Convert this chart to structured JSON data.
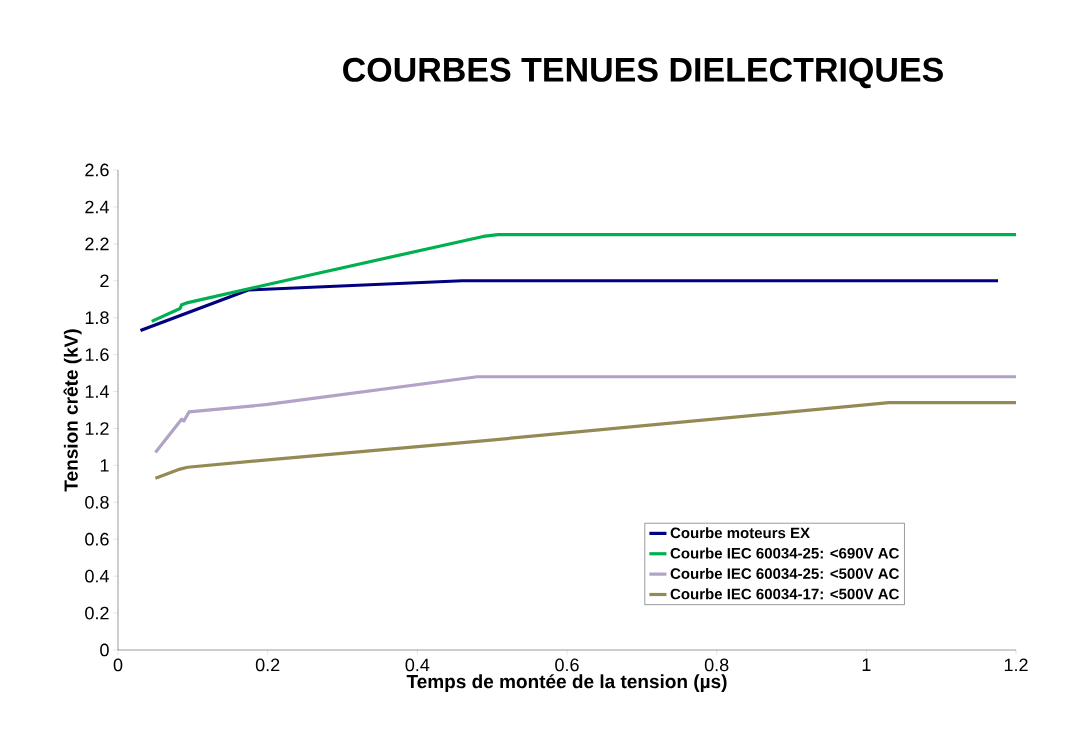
{
  "chart_data": {
    "type": "line",
    "title": "COURBES TENUES DIELECTRIQUES",
    "xlabel": "Temps de montée de la tension (µs)",
    "ylabel": "Tension crête (kV)",
    "xlim": [
      0,
      1.2
    ],
    "xticks": [
      0,
      0.2,
      0.4,
      0.6,
      0.8,
      1,
      1.2
    ],
    "ylim": [
      0,
      2.6
    ],
    "yticks": [
      0,
      0.2,
      0.4,
      0.6,
      0.8,
      1,
      1.2,
      1.4,
      1.6,
      1.8,
      2,
      2.2,
      2.4,
      2.6
    ],
    "grid": false,
    "legend": "bottom right",
    "marker": "none",
    "line_style": "solid",
    "series": [
      {
        "name": "Courbe moteurs EX",
        "color": "#000080",
        "x": [
          0.03,
          0.174,
          0.46,
          1.176
        ],
        "values": [
          1.73,
          1.95,
          2.0,
          2.0
        ]
      },
      {
        "name": "Courbe IEC 60034-25: <690V AC",
        "color": "#00b050",
        "x": [
          0.045,
          0.083,
          0.085,
          0.092,
          0.2,
          0.488,
          0.508,
          1.2
        ],
        "values": [
          1.78,
          1.85,
          1.87,
          1.88,
          1.98,
          2.24,
          2.25,
          2.25
        ]
      },
      {
        "name": "Courbe IEC 60034-25: <500V AC",
        "color": "#b3a2c7",
        "x": [
          0.05,
          0.085,
          0.088,
          0.095,
          0.2,
          0.48,
          1.2
        ],
        "values": [
          1.07,
          1.25,
          1.24,
          1.29,
          1.33,
          1.48,
          1.48
        ]
      },
      {
        "name": "Courbe IEC 60034-17: <500V AC",
        "color": "#948a54",
        "x": [
          0.05,
          0.083,
          0.093,
          0.2,
          0.48,
          1.03,
          1.2
        ],
        "values": [
          0.93,
          0.98,
          0.99,
          1.03,
          1.13,
          1.34,
          1.34
        ]
      }
    ]
  }
}
